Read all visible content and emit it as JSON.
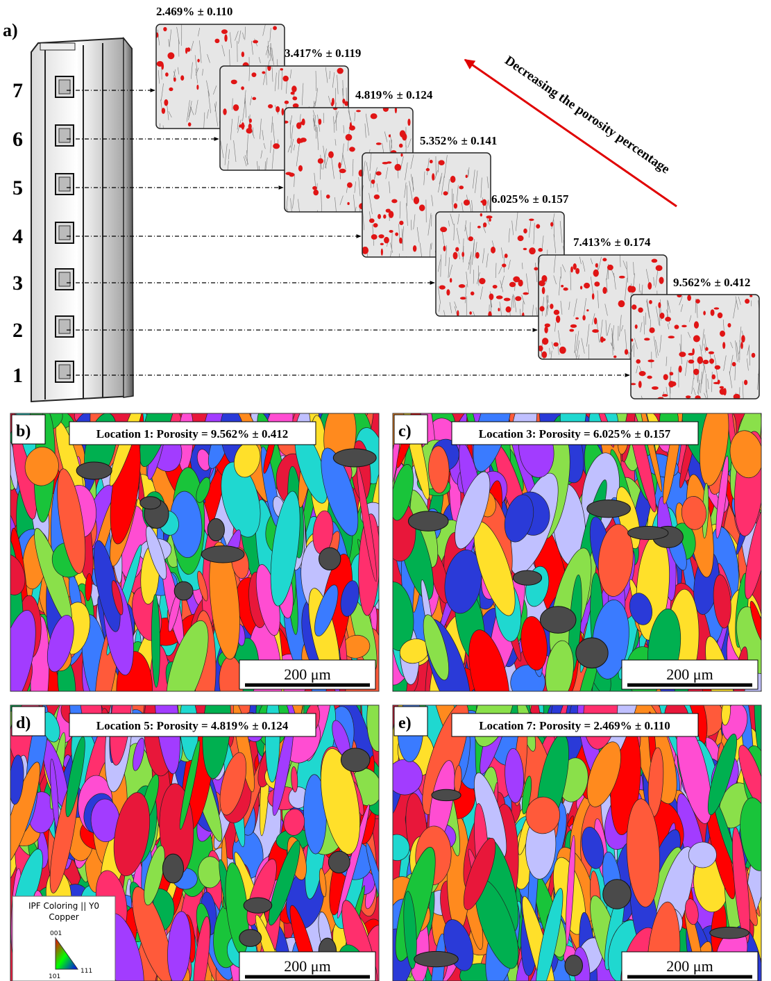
{
  "panel_a": {
    "label": "a)",
    "locations": [
      "7",
      "6",
      "5",
      "4",
      "3",
      "2",
      "1"
    ],
    "porosities": [
      "2.469% ± 0.110",
      "3.417% ± 0.119",
      "4.819% ± 0.124",
      "5.352% ± 0.141",
      "6.025% ± 0.157",
      "7.413% ± 0.174",
      "9.562% ± 0.412"
    ],
    "arrow_label": "Decreasing the porosity percentage"
  },
  "panels": [
    {
      "label": "b)",
      "caption": "Location 1: Porosity = 9.562% ± 0.412",
      "scale_bar": "200 μm"
    },
    {
      "label": "c)",
      "caption": "Location 3: Porosity = 6.025% ± 0.157",
      "scale_bar": "200 μm"
    },
    {
      "label": "d)",
      "caption": "Location 5: Porosity = 4.819% ± 0.124",
      "scale_bar": "200 μm"
    },
    {
      "label": "e)",
      "caption": "Location 7: Porosity = 2.469% ± 0.110",
      "scale_bar": "200 μm"
    }
  ],
  "legend": {
    "title": "IPF Coloring || Y0",
    "material": "Copper",
    "corners": [
      "001",
      "101",
      "111"
    ]
  }
}
